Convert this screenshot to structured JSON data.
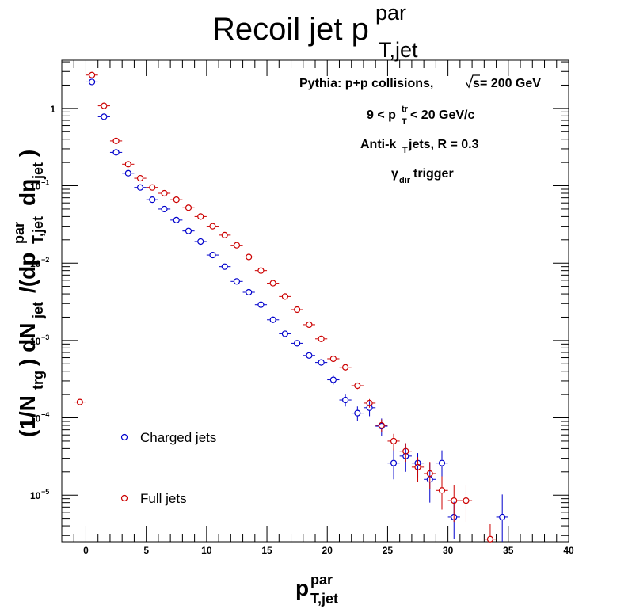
{
  "chart_data": {
    "type": "scatter",
    "title": {
      "main": "Recoil jet p",
      "sup": "par",
      "sub": "T,jet"
    },
    "xlabel": {
      "main": "p",
      "sup": "par",
      "sub": "T,jet"
    },
    "ylabel": {
      "p1": "(1/N",
      "p1sub": "trg",
      "p2": ") dN",
      "p2sub": "jet",
      "p3": "/(dp",
      "p3sup": "par",
      "p3sub": "T,jet",
      "p4": "dη",
      "p4sub": "jet",
      "p5": ")"
    },
    "x_scale": "linear",
    "y_scale": "log",
    "xlim": [
      -2,
      40
    ],
    "ylim": [
      2.5e-06,
      4.2
    ],
    "x_ticks": [
      "0",
      "5",
      "10",
      "15",
      "20",
      "25",
      "30",
      "35",
      "40"
    ],
    "y_ticks": [
      {
        "base": "1",
        "exp": ""
      },
      {
        "base": "10",
        "exp": "−1"
      },
      {
        "base": "10",
        "exp": "−2"
      },
      {
        "base": "10",
        "exp": "−3"
      },
      {
        "base": "10",
        "exp": "−4"
      },
      {
        "base": "10",
        "exp": "−5"
      }
    ],
    "grid": false,
    "legend_position": "bottom-left",
    "annotations": {
      "line1": {
        "text": "Pythia: p+p collisions,  ",
        "sqrt_text": "s",
        "tail": " = 200 GeV"
      },
      "line2": {
        "pre": "9 < p",
        "sup": "tr",
        "sub": "T",
        "post": " < 20 GeV/c"
      },
      "line3": {
        "pre": "Anti-k",
        "sub": "T",
        "post": " jets, R = 0.3"
      },
      "line4": {
        "pre": "γ",
        "sub": "dir",
        "post": " trigger"
      }
    },
    "series": [
      {
        "name": "Charged jets",
        "color": "#0000cc",
        "x": [
          0.5,
          1.5,
          2.5,
          3.5,
          4.5,
          5.5,
          6.5,
          7.5,
          8.5,
          9.5,
          10.5,
          11.5,
          12.5,
          13.5,
          14.5,
          15.5,
          16.5,
          17.5,
          18.5,
          19.5,
          20.5,
          21.5,
          22.5,
          23.5,
          24.5,
          25.5,
          26.5,
          27.5,
          28.5,
          29.5,
          30.5,
          34.5
        ],
        "y": [
          2.2,
          0.78,
          0.27,
          0.145,
          0.095,
          0.066,
          0.05,
          0.036,
          0.026,
          0.019,
          0.0127,
          0.009,
          0.0058,
          0.0042,
          0.0029,
          0.00185,
          0.00122,
          0.00092,
          0.00064,
          0.00052,
          0.00031,
          0.00017,
          0.000115,
          0.000135,
          7.8e-05,
          2.6e-05,
          3.2e-05,
          2.6e-05,
          1.6e-05,
          2.6e-05,
          5.2e-06,
          5.2e-06
        ],
        "err_low": [
          0.05,
          0.02,
          0.008,
          0.005,
          0.003,
          0.002,
          0.0015,
          0.0012,
          0.0009,
          0.0007,
          0.0005,
          0.0004,
          0.00025,
          0.0002,
          0.00014,
          0.0001,
          7e-05,
          6e-05,
          5e-05,
          4e-05,
          4e-05,
          3e-05,
          2.5e-05,
          3e-05,
          2e-05,
          1e-05,
          1.2e-05,
          9e-06,
          8e-06,
          9e-06,
          2.5e-06,
          2.7e-06
        ],
        "err_high": [
          0.05,
          0.02,
          0.008,
          0.005,
          0.003,
          0.002,
          0.0015,
          0.0012,
          0.0009,
          0.0007,
          0.0005,
          0.0004,
          0.00025,
          0.0002,
          0.00014,
          0.0001,
          7e-05,
          6e-05,
          5e-05,
          4e-05,
          4e-05,
          3e-05,
          2.5e-05,
          3e-05,
          2e-05,
          1.4e-05,
          1.5e-05,
          9e-06,
          1e-05,
          1.2e-05,
          3e-06,
          5e-06
        ]
      },
      {
        "name": "Full jets",
        "color": "#cc0000",
        "x": [
          -0.5,
          0.5,
          1.5,
          2.5,
          3.5,
          4.5,
          5.5,
          6.5,
          7.5,
          8.5,
          9.5,
          10.5,
          11.5,
          12.5,
          13.5,
          14.5,
          15.5,
          16.5,
          17.5,
          18.5,
          19.5,
          20.5,
          21.5,
          22.5,
          23.5,
          24.5,
          25.5,
          26.5,
          27.5,
          28.5,
          29.5,
          30.5,
          31.5,
          33.5
        ],
        "y": [
          0.00016,
          2.7,
          1.08,
          0.38,
          0.19,
          0.125,
          0.095,
          0.08,
          0.066,
          0.052,
          0.04,
          0.03,
          0.023,
          0.017,
          0.012,
          0.008,
          0.0055,
          0.0037,
          0.0025,
          0.0016,
          0.00105,
          0.00058,
          0.00045,
          0.00026,
          0.000155,
          8e-05,
          5e-05,
          3.7e-05,
          2.3e-05,
          1.9e-05,
          1.15e-05,
          8.5e-06,
          8.5e-06,
          2.7e-06
        ],
        "err_low": [
          1.2e-05,
          0.06,
          0.02,
          0.01,
          0.005,
          0.003,
          0.002,
          0.0018,
          0.0015,
          0.0012,
          0.0009,
          0.0007,
          0.0005,
          0.0004,
          0.0003,
          0.0002,
          0.00015,
          0.0001,
          8e-05,
          6e-05,
          5e-05,
          4e-05,
          3e-05,
          2.5e-05,
          2e-05,
          1.5e-05,
          1.2e-05,
          1e-05,
          8e-06,
          7e-06,
          5e-06,
          4e-06,
          4e-06,
          1e-06
        ],
        "err_high": [
          1.2e-05,
          0.06,
          0.02,
          0.01,
          0.005,
          0.003,
          0.002,
          0.0018,
          0.0015,
          0.0012,
          0.0009,
          0.0007,
          0.0005,
          0.0004,
          0.0003,
          0.0002,
          0.00015,
          0.0001,
          8e-05,
          6e-05,
          5e-05,
          4e-05,
          3e-05,
          2.5e-05,
          2e-05,
          1.5e-05,
          1.2e-05,
          1e-05,
          8e-06,
          8e-06,
          6e-06,
          5e-06,
          5e-06,
          1.5e-06
        ]
      }
    ]
  }
}
